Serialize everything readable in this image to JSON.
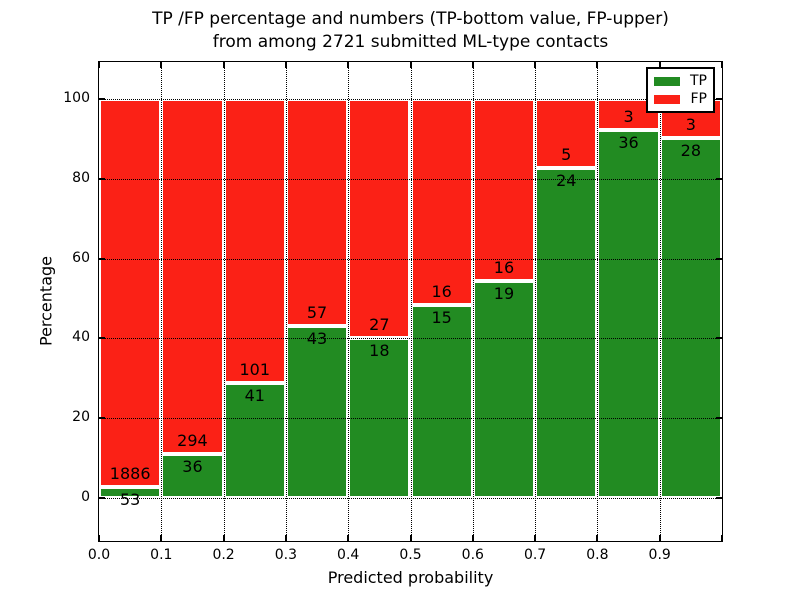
{
  "figure": {
    "title_line1": "TP /FP percentage and numbers (TP-bottom value, FP-upper)",
    "title_line2": "from among 2721 submitted ML-type contacts"
  },
  "chart_data": {
    "type": "bar",
    "stacked": true,
    "normalized": "each bar scaled to 100 percent, counts shown as labels",
    "title": "TP /FP percentage and numbers (TP-bottom value, FP-upper)\nfrom among 2721 submitted ML-type contacts",
    "xlabel": "Predicted probability",
    "ylabel": "Percentage",
    "total_contacts": 2721,
    "bin_edges": [
      0.0,
      0.1,
      0.2,
      0.3,
      0.4,
      0.5,
      0.6,
      0.7,
      0.8,
      0.9,
      1.0
    ],
    "series": [
      {
        "name": "TP",
        "color": "#228b22",
        "values": [
          53,
          36,
          41,
          43,
          18,
          15,
          19,
          24,
          36,
          28
        ]
      },
      {
        "name": "FP",
        "color": "#fb2116",
        "values": [
          1886,
          294,
          101,
          57,
          27,
          16,
          16,
          5,
          3,
          3
        ]
      }
    ],
    "tp_percent_per_bar": [
      2.7,
      10.9,
      28.9,
      43.0,
      40.0,
      48.4,
      54.3,
      82.8,
      92.3,
      90.3
    ],
    "x_tick_values": [
      0.0,
      0.1,
      0.2,
      0.3,
      0.4,
      0.5,
      0.6,
      0.7,
      0.8,
      0.9
    ],
    "x_tick_labels": [
      "0.0",
      "0.1",
      "0.2",
      "0.3",
      "0.4",
      "0.5",
      "0.6",
      "0.7",
      "0.8",
      "0.9"
    ],
    "y_ticks": [
      0,
      20,
      40,
      60,
      80,
      100
    ],
    "xlim": [
      0,
      1
    ],
    "ylim": [
      -10.8,
      109.3
    ],
    "grid": {
      "style": "dotted",
      "color": "#000000"
    },
    "bar_edge_color": "#ffffff",
    "legend": {
      "position": "upper right",
      "entries": [
        "TP",
        "FP"
      ]
    }
  }
}
